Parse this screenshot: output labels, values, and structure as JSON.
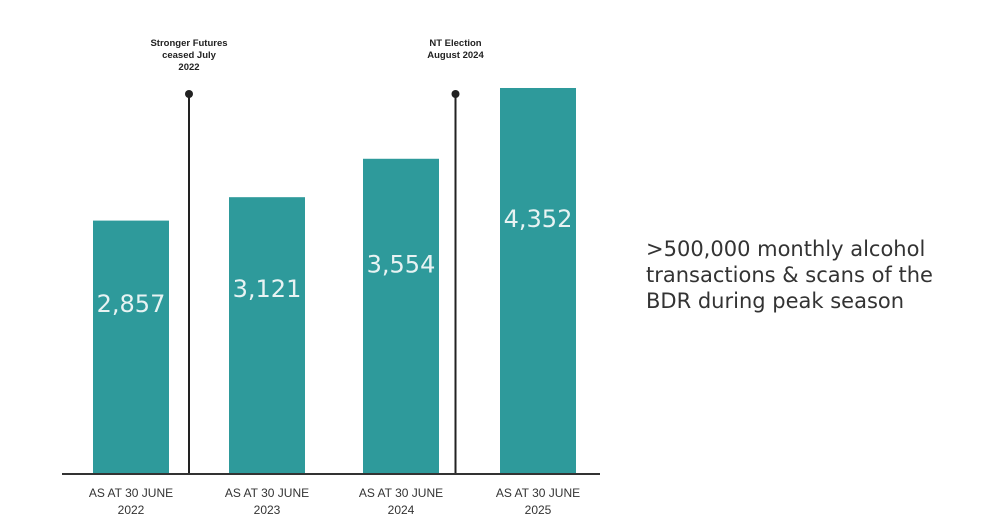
{
  "side_note": ">500,000 monthly alcohol transactions & scans of the BDR during peak season",
  "colors": {
    "bar": "#2e9a9b",
    "bar_label": "#e8f3f3",
    "axis": "#333333",
    "marker": "#222222",
    "text": "#333333"
  },
  "chart_data": {
    "type": "bar",
    "title": "",
    "xlabel": "",
    "ylabel": "",
    "categories": [
      [
        "AS AT 30 JUNE",
        "2022"
      ],
      [
        "AS AT 30 JUNE",
        "2023"
      ],
      [
        "AS AT 30 JUNE",
        "2024"
      ],
      [
        "AS AT 30 JUNE",
        "2025"
      ]
    ],
    "values": [
      2857,
      3121,
      3554,
      4352
    ],
    "value_labels": [
      "2,857",
      "3,121",
      "3,554",
      "4,352"
    ],
    "ylim": [
      0,
      4600
    ],
    "grid": false,
    "legend": "none",
    "annotations": [
      {
        "after_category": 0,
        "lines": [
          "Stronger Futures",
          "ceased July",
          "2022"
        ]
      },
      {
        "after_category": 2,
        "lines": [
          "NT Election",
          "August 2024"
        ]
      }
    ]
  }
}
